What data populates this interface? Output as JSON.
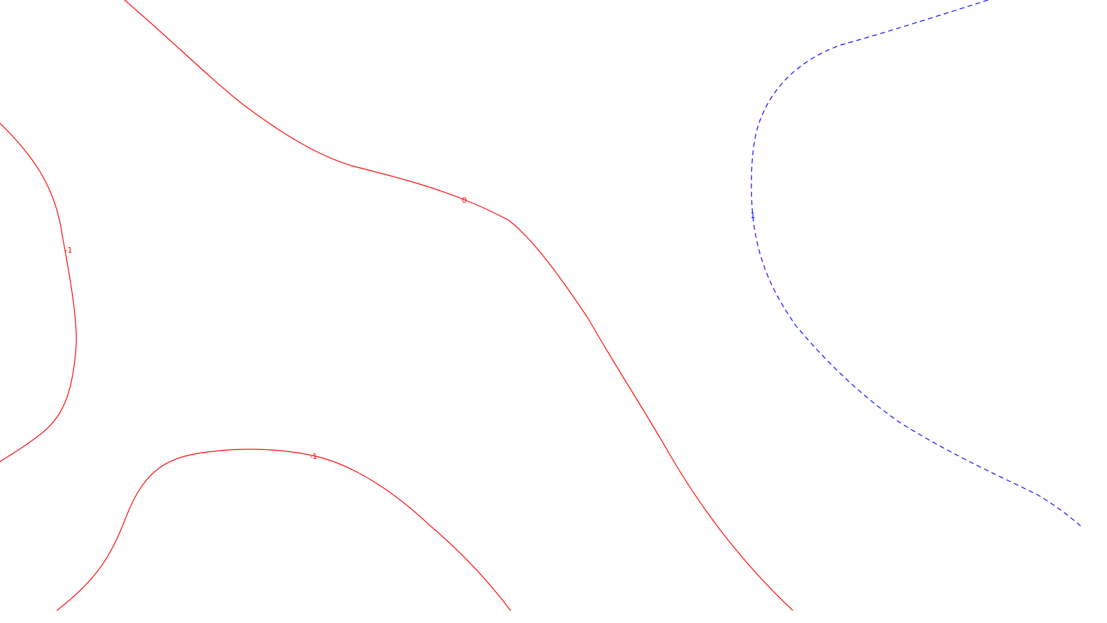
{
  "chart_data": {
    "type": "contour",
    "title": "",
    "xlabel": "",
    "ylabel": "",
    "grid": false,
    "legend": "none",
    "colors": {
      "negative_and_zero": "#ff0000",
      "positive": "#0000ff",
      "background": "#ffffff"
    },
    "levels": [
      {
        "value": -1,
        "label": "-1",
        "color": "#ff0000",
        "dashed": false
      },
      {
        "value": 0,
        "label": "0",
        "color": "#ff0000",
        "dashed": false
      },
      {
        "value": 1,
        "label": "1",
        "color": "#0000ff",
        "dashed": true
      }
    ]
  }
}
